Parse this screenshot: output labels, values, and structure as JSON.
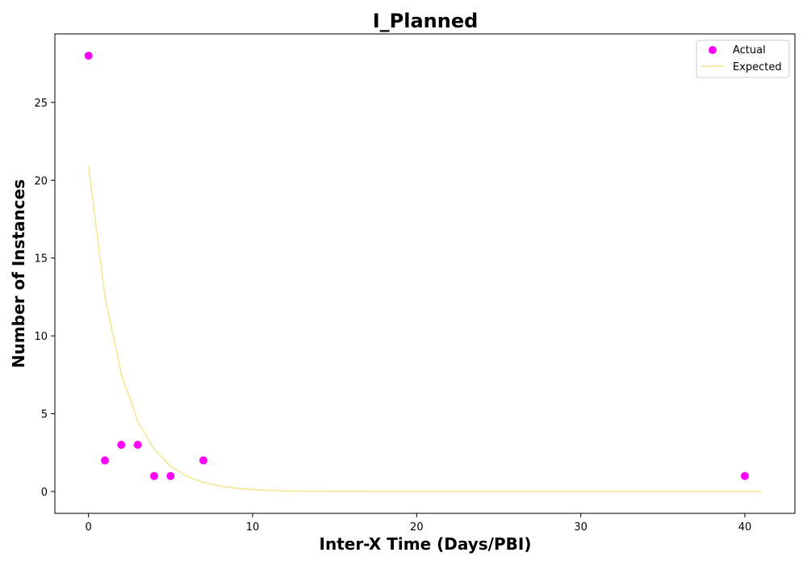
{
  "chart_data": {
    "type": "scatter",
    "title": "I_Planned",
    "xlabel": "Inter-X Time (Days/PBI)",
    "ylabel": "Number of Instances",
    "xlim": [
      -2.05,
      43.05
    ],
    "ylim": [
      -1.4,
      29.4
    ],
    "xticks": [
      0,
      10,
      20,
      30,
      40
    ],
    "yticks": [
      0,
      5,
      10,
      15,
      20,
      25
    ],
    "grid": false,
    "legend_position": "top-right",
    "series": [
      {
        "name": "Actual",
        "kind": "scatter",
        "color": "#ff00ff",
        "points": [
          {
            "x": 0,
            "y": 28
          },
          {
            "x": 1,
            "y": 2
          },
          {
            "x": 2,
            "y": 3
          },
          {
            "x": 3,
            "y": 3
          },
          {
            "x": 4,
            "y": 1
          },
          {
            "x": 5,
            "y": 1
          },
          {
            "x": 7,
            "y": 2
          },
          {
            "x": 40,
            "y": 1
          }
        ]
      },
      {
        "name": "Expected",
        "kind": "line",
        "color": "#f0e68c",
        "x_start": 0,
        "x_end": 41,
        "y0": 20.9,
        "decay_rate": 0.51
      }
    ]
  }
}
